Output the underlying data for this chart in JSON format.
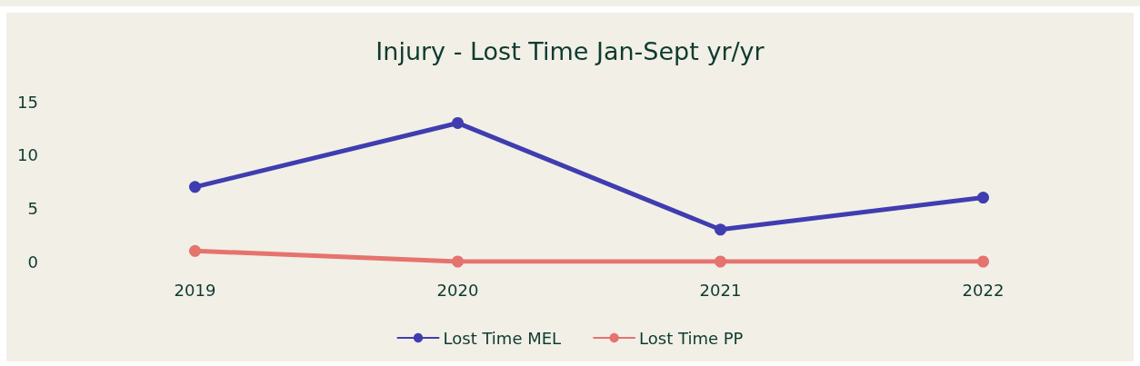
{
  "chart_data": {
    "type": "line",
    "title": "Injury - Lost Time Jan-Sept yr/yr",
    "categories": [
      "2019",
      "2020",
      "2021",
      "2022"
    ],
    "series": [
      {
        "name": "Lost Time MEL",
        "color": "#3f3db0",
        "values": [
          7,
          13,
          3,
          6
        ]
      },
      {
        "name": "Lost Time PP",
        "color": "#e5736e",
        "values": [
          1,
          0,
          0,
          0
        ]
      }
    ],
    "ylim": [
      0,
      15
    ],
    "yticks": [
      0,
      5,
      10,
      15
    ],
    "grid": false,
    "legend": "bottom",
    "marker": "circle",
    "line_style": "solid"
  }
}
